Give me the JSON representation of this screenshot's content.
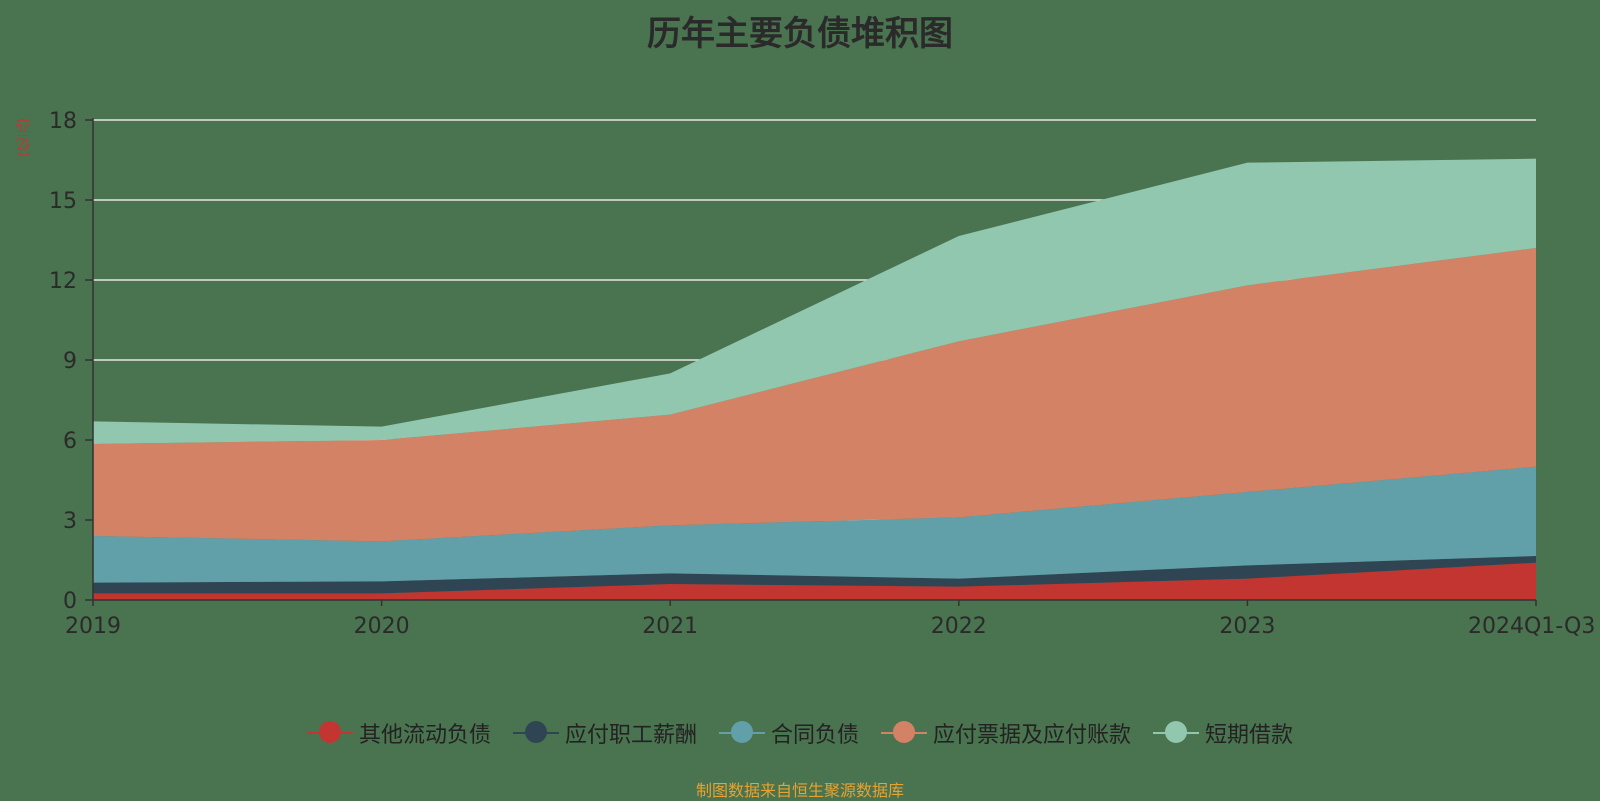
{
  "chart_data": {
    "type": "area",
    "stacked": true,
    "title": "历年主要负债堆积图",
    "unit_label": "(亿元)",
    "source_note": "制图数据来自恒生聚源数据库",
    "categories": [
      "2019",
      "2020",
      "2021",
      "2022",
      "2023",
      "2024Q1-Q3"
    ],
    "ylim": [
      0,
      18
    ],
    "yticks": [
      0,
      3,
      6,
      9,
      12,
      15,
      18
    ],
    "grid": true,
    "legend_position": "bottom",
    "series": [
      {
        "name": "其他流动负债",
        "color": "#c23531",
        "values": [
          0.25,
          0.25,
          0.6,
          0.5,
          0.8,
          1.4
        ]
      },
      {
        "name": "应付职工薪酬",
        "color": "#2f4554",
        "values": [
          0.4,
          0.45,
          0.4,
          0.3,
          0.5,
          0.25
        ]
      },
      {
        "name": "合同负债",
        "color": "#61a0a8",
        "values": [
          1.75,
          1.5,
          1.8,
          2.3,
          2.75,
          3.35
        ]
      },
      {
        "name": "应付票据及应付账款",
        "color": "#d48265",
        "values": [
          3.45,
          3.8,
          4.15,
          6.6,
          7.75,
          8.2
        ]
      },
      {
        "name": "短期借款",
        "color": "#91c7ae",
        "values": [
          0.85,
          0.5,
          1.55,
          3.95,
          4.6,
          3.35
        ]
      }
    ]
  }
}
